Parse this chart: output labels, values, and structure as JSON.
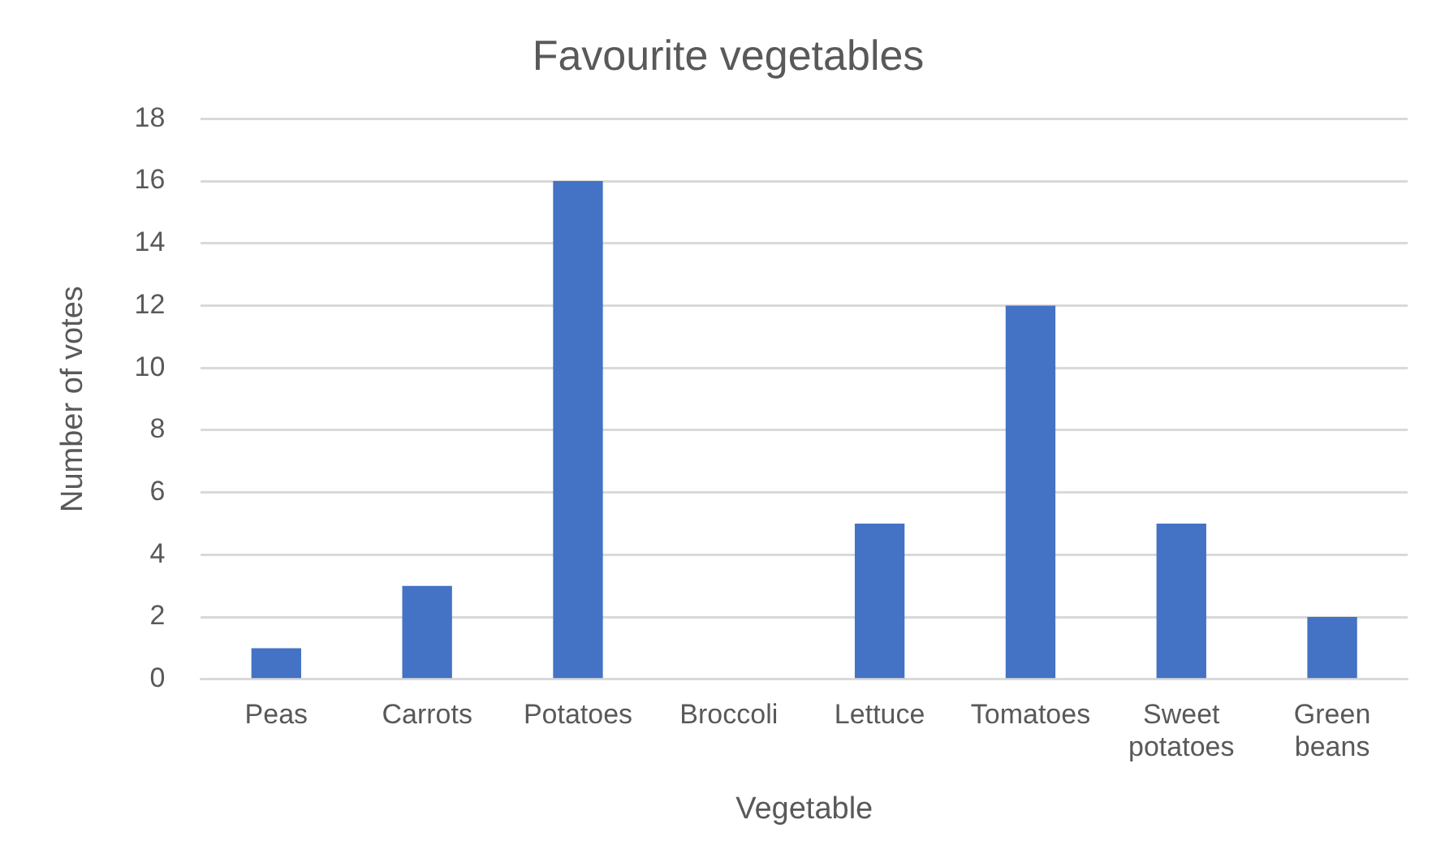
{
  "chart_data": {
    "type": "bar",
    "title": "Favourite vegetables",
    "xlabel": "Vegetable",
    "ylabel": "Number of votes",
    "categories": [
      "Peas",
      "Carrots",
      "Potatoes",
      "Broccoli",
      "Lettuce",
      "Tomatoes",
      "Sweet potatoes",
      "Green beans"
    ],
    "values": [
      1,
      3,
      16,
      0,
      5,
      12,
      5,
      2
    ],
    "color": "#4472c4",
    "ylim": [
      0,
      18
    ],
    "yticks": [
      0,
      2,
      4,
      6,
      8,
      10,
      12,
      14,
      16,
      18
    ],
    "grid": "y",
    "legend": false
  }
}
